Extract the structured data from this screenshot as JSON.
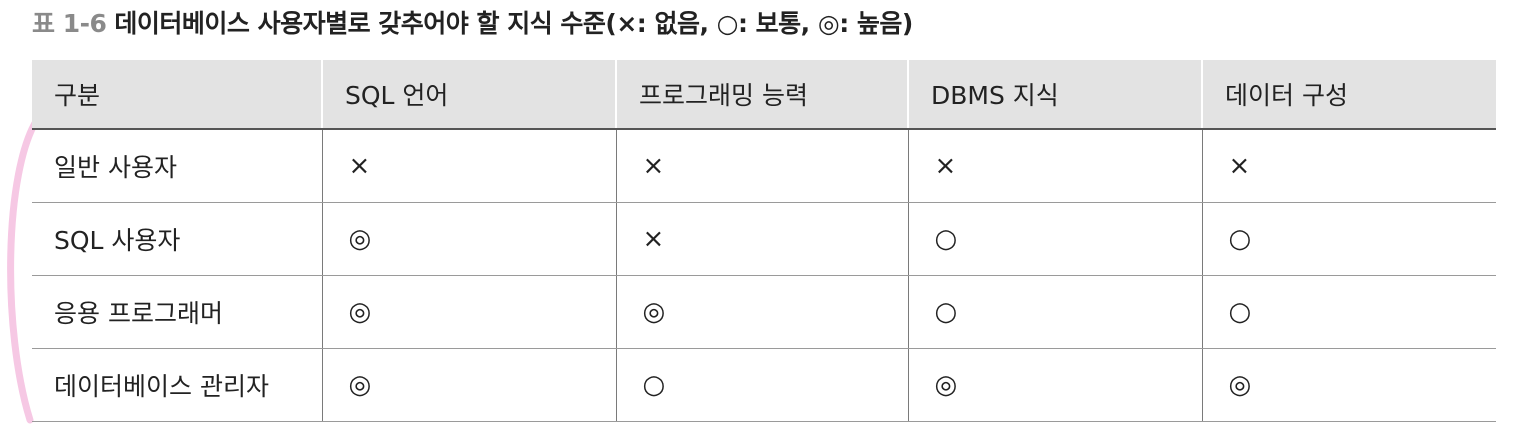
{
  "caption": {
    "number": "표 1-6",
    "title": "데이터베이스 사용자별로 갖추어야 할 지식 수준(×: 없음, ○: 보통, ◎: 높음)"
  },
  "table": {
    "headers": [
      "구분",
      "SQL 언어",
      "프로그래밍 능력",
      "DBMS 지식",
      "데이터 구성"
    ],
    "rows": [
      [
        "일반 사용자",
        "×",
        "×",
        "×",
        "×"
      ],
      [
        "SQL 사용자",
        "◎",
        "×",
        "○",
        "○"
      ],
      [
        "응용 프로그래머",
        "◎",
        "◎",
        "○",
        "○"
      ],
      [
        "데이터베이스 관리자",
        "◎",
        "○",
        "◎",
        "◎"
      ]
    ]
  },
  "colors": {
    "header_background": "#e3e3e3",
    "caption_number": "#8a8a8a",
    "decoration_arc": "#f6c8e4"
  }
}
